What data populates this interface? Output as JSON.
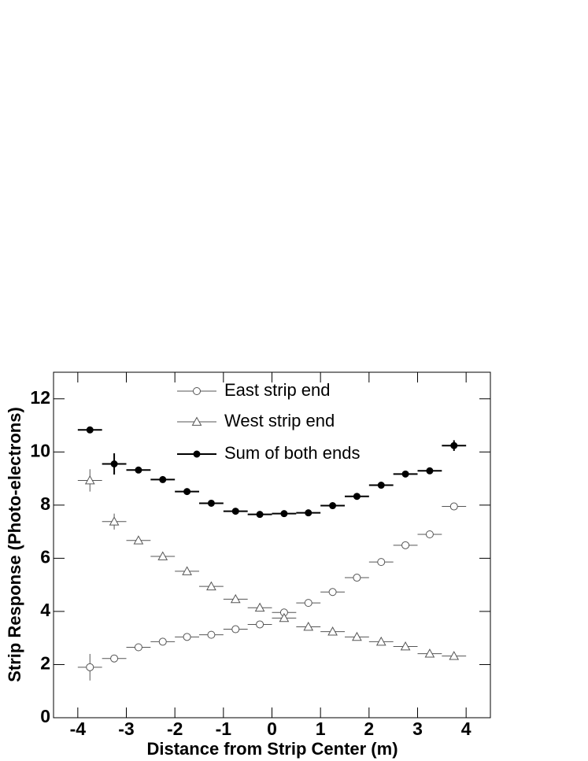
{
  "chart_data": {
    "type": "errorbar",
    "xlabel": "Distance from Strip Center (m)",
    "ylabel": "Strip Response (Photo-electrons)",
    "x": [
      -3.75,
      -3.25,
      -2.75,
      -2.25,
      -1.75,
      -1.25,
      -0.75,
      -0.25,
      0.25,
      0.75,
      1.25,
      1.75,
      2.25,
      2.75,
      3.25,
      3.75
    ],
    "xerr": 0.25,
    "xlim": [
      -4.5,
      4.5
    ],
    "xticks": [
      -4,
      -3,
      -2,
      -1,
      0,
      1,
      2,
      3,
      4
    ],
    "ylim": [
      0,
      13
    ],
    "yticks": [
      0,
      2,
      4,
      6,
      8,
      10,
      12
    ],
    "series": [
      {
        "name": "East strip end",
        "color": "#555555",
        "marker": "open-circle",
        "values": [
          1.9,
          2.23,
          2.65,
          2.86,
          3.04,
          3.12,
          3.33,
          3.51,
          3.96,
          4.32,
          4.73,
          5.27,
          5.86,
          6.49,
          6.9,
          7.95
        ],
        "errors": [
          0.5,
          0.12,
          0.08,
          0.07,
          0.06,
          0.06,
          0.06,
          0.06,
          0.07,
          0.07,
          0.08,
          0.09,
          0.1,
          0.1,
          0.11,
          0.14
        ]
      },
      {
        "name": "West strip end",
        "color": "#555555",
        "marker": "open-triangle",
        "values": [
          8.93,
          7.38,
          6.67,
          6.07,
          5.51,
          4.94,
          4.46,
          4.14,
          3.75,
          3.42,
          3.24,
          3.04,
          2.86,
          2.68,
          2.41,
          2.32
        ],
        "errors": [
          0.42,
          0.3,
          0.1,
          0.09,
          0.08,
          0.07,
          0.07,
          0.06,
          0.06,
          0.06,
          0.06,
          0.06,
          0.06,
          0.06,
          0.07,
          0.08
        ]
      },
      {
        "name": "Sum of both ends",
        "color": "#000000",
        "marker": "filled-circle",
        "values": [
          10.83,
          9.55,
          9.32,
          8.96,
          8.51,
          8.07,
          7.77,
          7.65,
          7.68,
          7.71,
          7.98,
          8.33,
          8.75,
          9.17,
          9.29,
          10.24
        ],
        "errors": [
          0.12,
          0.4,
          0.1,
          0.08,
          0.07,
          0.07,
          0.06,
          0.06,
          0.06,
          0.06,
          0.07,
          0.07,
          0.08,
          0.09,
          0.1,
          0.2
        ]
      }
    ]
  }
}
